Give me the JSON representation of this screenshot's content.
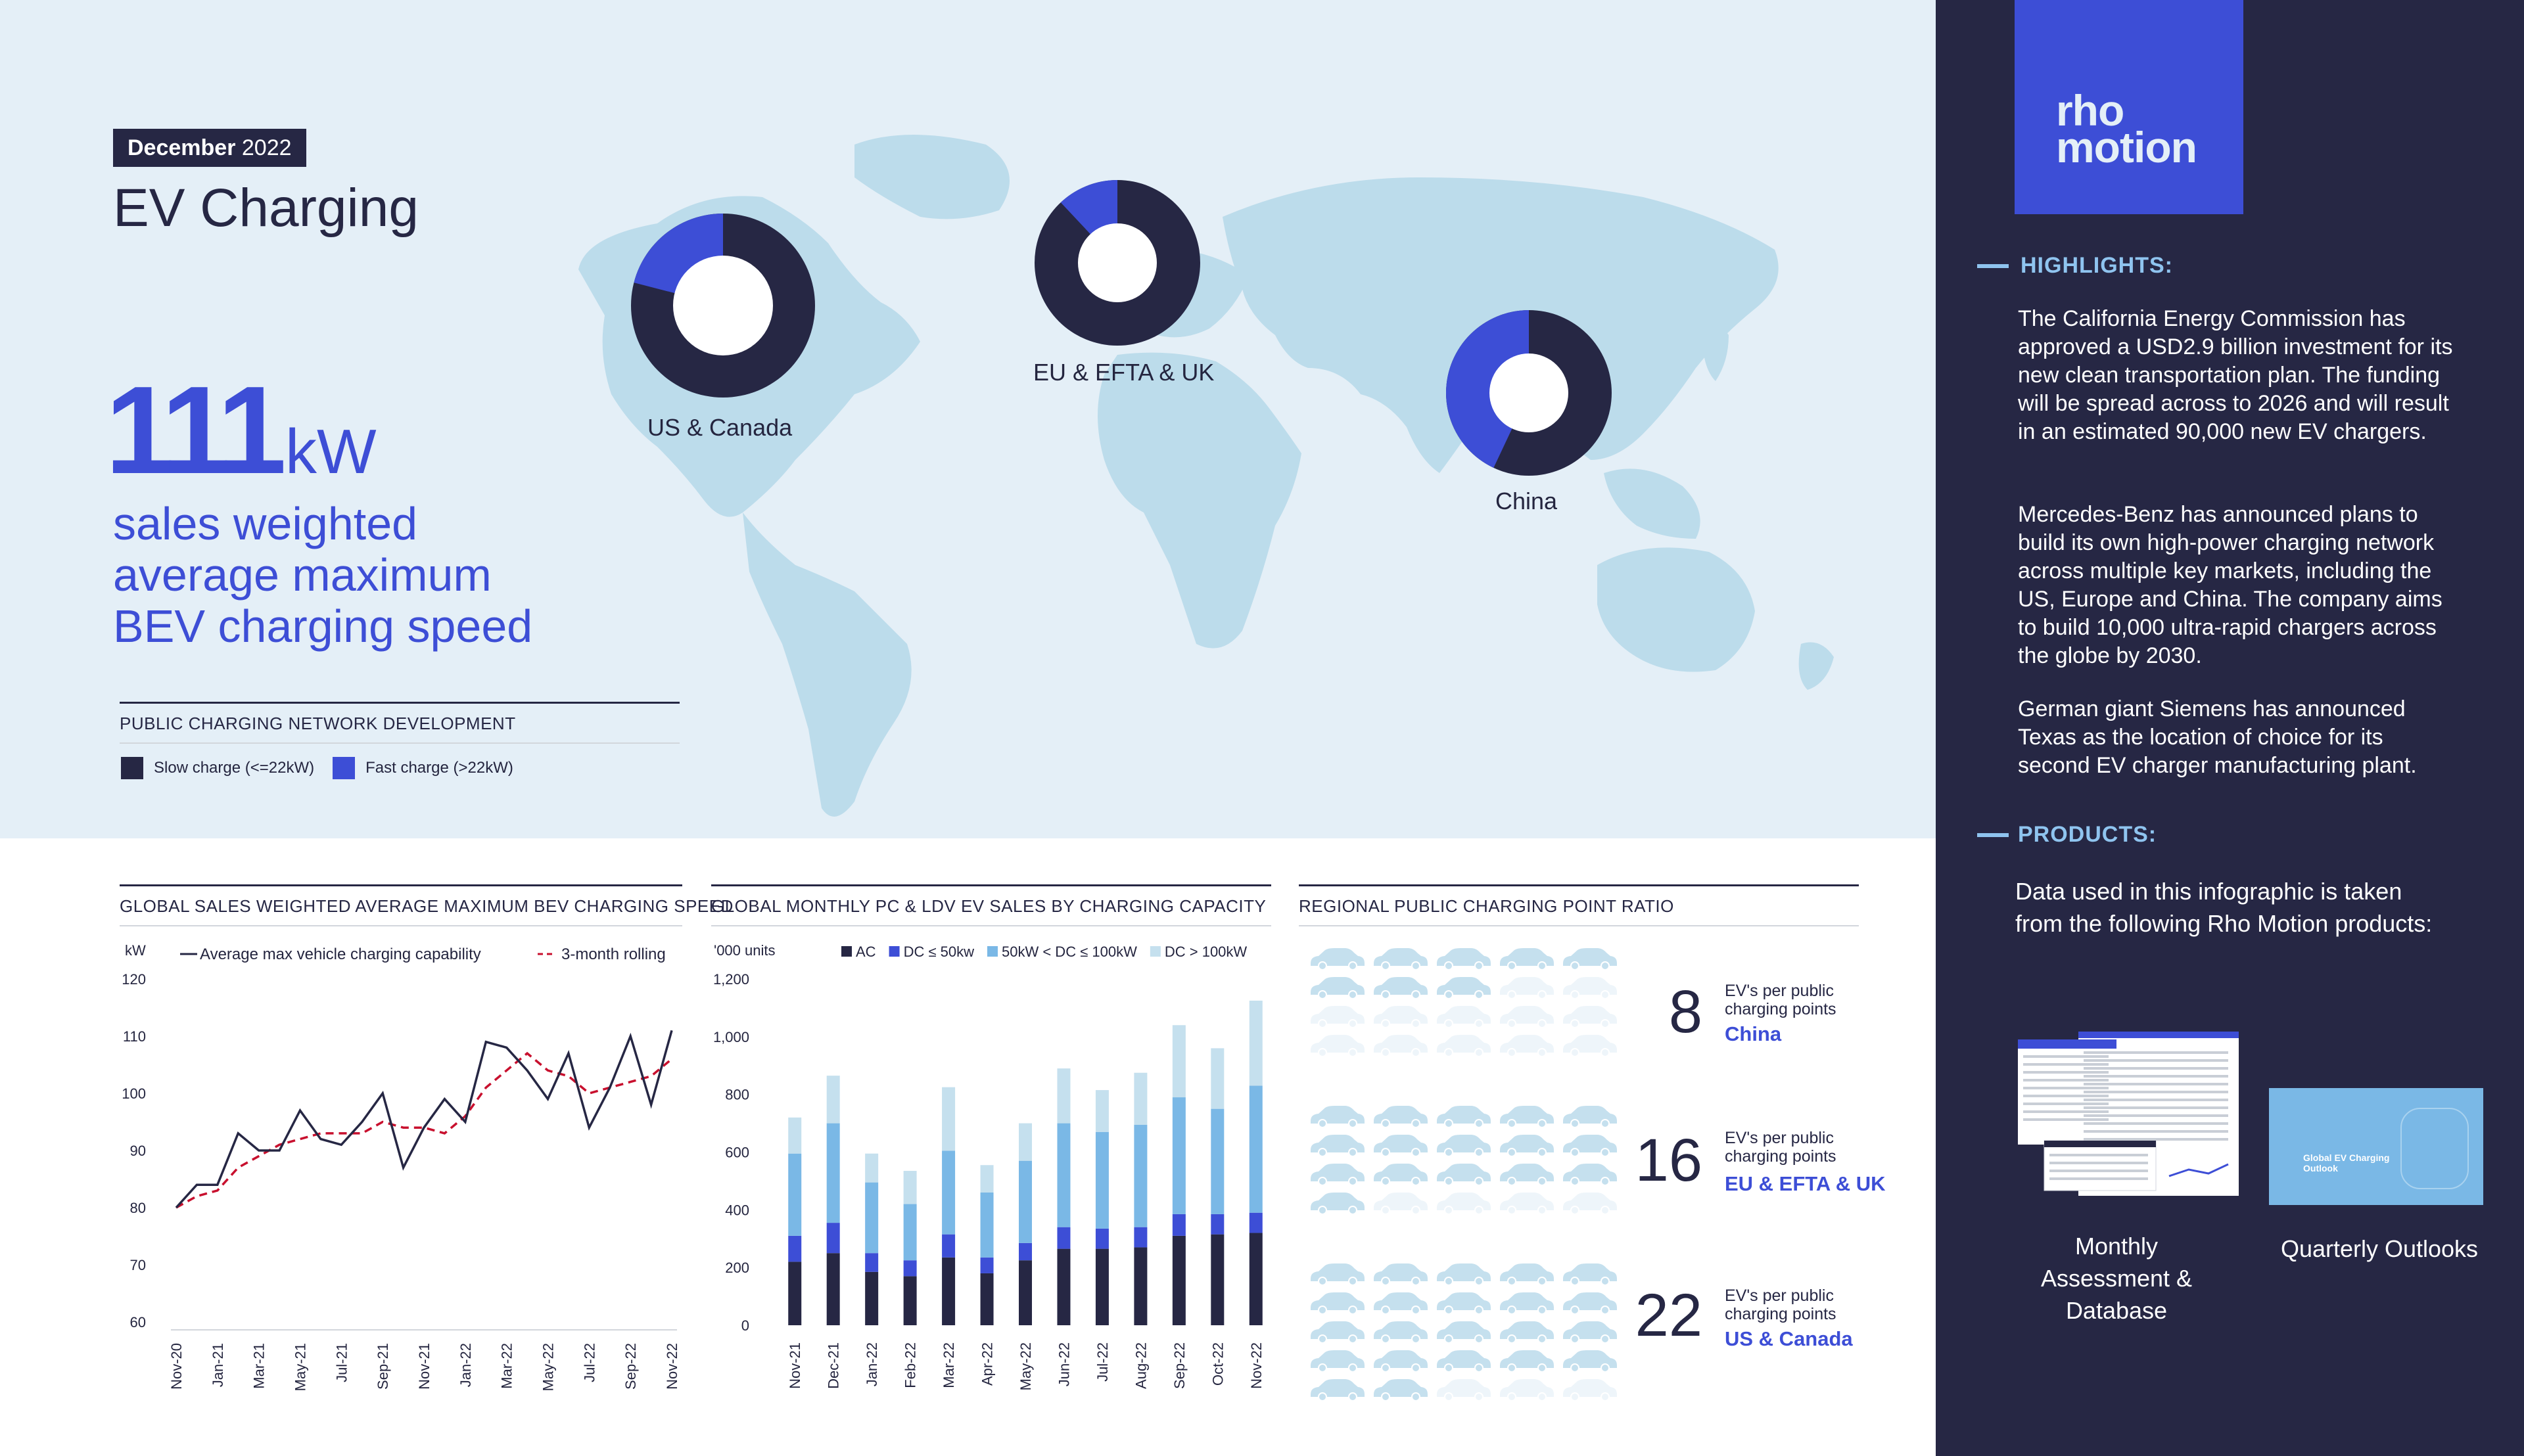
{
  "header": {
    "date_bold": "December",
    "date_year": "2022",
    "title": "EV Charging"
  },
  "headline": {
    "value": "111",
    "unit": "kW",
    "description": "sales weighted average maximum BEV charging speed"
  },
  "map": {
    "section_title": "PUBLIC CHARGING NETWORK DEVELOPMENT",
    "legend": [
      {
        "label": "Slow charge (<=22kW)",
        "color": "#262744"
      },
      {
        "label": "Fast charge (>22kW)",
        "color": "#3d4ed6"
      }
    ],
    "regions": [
      {
        "label": "US & Canada",
        "fast_share": 0.21
      },
      {
        "label": "EU & EFTA & UK",
        "fast_share": 0.12
      },
      {
        "label": "China",
        "fast_share": 0.43
      }
    ]
  },
  "chart_data": [
    {
      "type": "line",
      "title": "GLOBAL SALES WEIGHTED AVERAGE MAXIMUM BEV CHARGING SPEED",
      "ylabel": "kW",
      "ylim": [
        60,
        120
      ],
      "yticks": [
        "120",
        "110",
        "100",
        "90",
        "80",
        "70",
        "60"
      ],
      "x": [
        "Nov-20",
        "Dec-20",
        "Jan-21",
        "Feb-21",
        "Mar-21",
        "Apr-21",
        "May-21",
        "Jun-21",
        "Jul-21",
        "Aug-21",
        "Sep-21",
        "Oct-21",
        "Nov-21",
        "Dec-21",
        "Jan-22",
        "Feb-22",
        "Mar-22",
        "Apr-22",
        "May-22",
        "Jun-22",
        "Jul-22",
        "Aug-22",
        "Sep-22",
        "Oct-22",
        "Nov-22"
      ],
      "xtick_labels": [
        "Nov-20",
        "Jan-21",
        "Mar-21",
        "May-21",
        "Jul-21",
        "Sep-21",
        "Nov-21",
        "Jan-22",
        "Mar-22",
        "May-22",
        "Jul-22",
        "Sep-22",
        "Nov-22"
      ],
      "series": [
        {
          "name": "Average max vehicle charging capability",
          "style": "solid",
          "color": "#262744",
          "values": [
            80,
            84,
            84,
            93,
            90,
            90,
            97,
            92,
            91,
            95,
            100,
            87,
            94,
            99,
            95,
            109,
            108,
            104,
            99,
            107,
            94,
            101,
            110,
            98,
            111
          ]
        },
        {
          "name": "3-month rolling",
          "style": "dashed",
          "color": "#c8102e",
          "values": [
            80,
            82,
            83,
            87,
            89,
            91,
            92,
            93,
            93,
            93,
            95,
            94,
            94,
            93,
            96,
            101,
            104,
            107,
            104,
            103,
            100,
            101,
            102,
            103,
            106
          ]
        }
      ]
    },
    {
      "type": "bar",
      "stacked": true,
      "title": "GLOBAL MONTHLY PC & LDV EV SALES BY CHARGING CAPACITY",
      "ylabel": "'000 units",
      "ylim": [
        0,
        1200
      ],
      "yticks": [
        "1,200",
        "1,000",
        "800",
        "600",
        "400",
        "200",
        "0"
      ],
      "categories": [
        "Nov-21",
        "Dec-21",
        "Jan-22",
        "Feb-22",
        "Mar-22",
        "Apr-22",
        "May-22",
        "Jun-22",
        "Jul-22",
        "Aug-22",
        "Sep-22",
        "Oct-22",
        "Nov-22"
      ],
      "series": [
        {
          "name": "AC",
          "color": "#262744",
          "values": [
            220,
            250,
            185,
            170,
            235,
            180,
            225,
            265,
            265,
            270,
            310,
            315,
            320
          ]
        },
        {
          "name": "DC ≤ 50kw",
          "color": "#3d4ed6",
          "values": [
            90,
            105,
            65,
            55,
            80,
            55,
            60,
            75,
            70,
            70,
            75,
            70,
            70
          ]
        },
        {
          "name": "50kW < DC ≤ 100kW",
          "color": "#7ab8e6",
          "values": [
            285,
            345,
            245,
            195,
            290,
            225,
            285,
            360,
            335,
            355,
            405,
            365,
            440
          ]
        },
        {
          "name": "DC > 100kW",
          "color": "#c5e0ee",
          "values": [
            125,
            165,
            100,
            115,
            220,
            95,
            130,
            190,
            145,
            180,
            250,
            210,
            295
          ]
        }
      ]
    },
    {
      "type": "pie",
      "title": "PUBLIC CHARGING NETWORK DEVELOPMENT",
      "categories": [
        "Slow charge (<=22kW)",
        "Fast charge (>22kW)"
      ],
      "series": [
        {
          "name": "US & Canada",
          "values": [
            79,
            21
          ]
        },
        {
          "name": "EU & EFTA & UK",
          "values": [
            88,
            12
          ]
        },
        {
          "name": "China",
          "values": [
            57,
            43
          ]
        }
      ]
    }
  ],
  "line_chart_labels": {
    "unit": "kW",
    "legend_solid": "Average max vehicle charging capability",
    "legend_dashed": "3-month rolling"
  },
  "bar_chart_labels": {
    "unit": "'000 units"
  },
  "ratio": {
    "title": "REGIONAL PUBLIC CHARGING POINT RATIO",
    "sub_label": "EV's per public charging points",
    "rows": [
      {
        "value": "8",
        "region": "China",
        "cars": 8
      },
      {
        "value": "16",
        "region": "EU & EFTA & UK",
        "cars": 16
      },
      {
        "value": "22",
        "region": "US & Canada",
        "cars": 22
      }
    ]
  },
  "sidebar": {
    "logo_line1": "rho",
    "logo_line2": "motion",
    "highlights_title": "HIGHLIGHTS:",
    "highlights": [
      "The California Energy Commission has approved a USD2.9 billion investment for its new clean transportation plan. The funding will be spread across to 2026 and will result in an estimated 90,000 new EV chargers.",
      "Mercedes-Benz has announced plans to build its own high-power charging network across multiple key markets, including the US, Europe and China. The company aims to build 10,000 ultra-rapid chargers across the globe by 2030.",
      "German giant Siemens has announced Texas as the location of choice for its second EV charger manufacturing plant."
    ],
    "products_title": "PRODUCTS:",
    "products_intro": "Data used in this infographic is taken from the following Rho Motion products:",
    "product1": "Monthly Assessment & Database",
    "product2": "Quarterly Outlooks",
    "product2_cover_title": "Global EV Charging Outlook"
  },
  "colors": {
    "navy": "#262744",
    "blue": "#3d4ed6",
    "light_blue": "#8fc4ef",
    "map_land": "#bcdceb",
    "background": "#e4eff7",
    "car_icon": "#c5e0ee"
  }
}
